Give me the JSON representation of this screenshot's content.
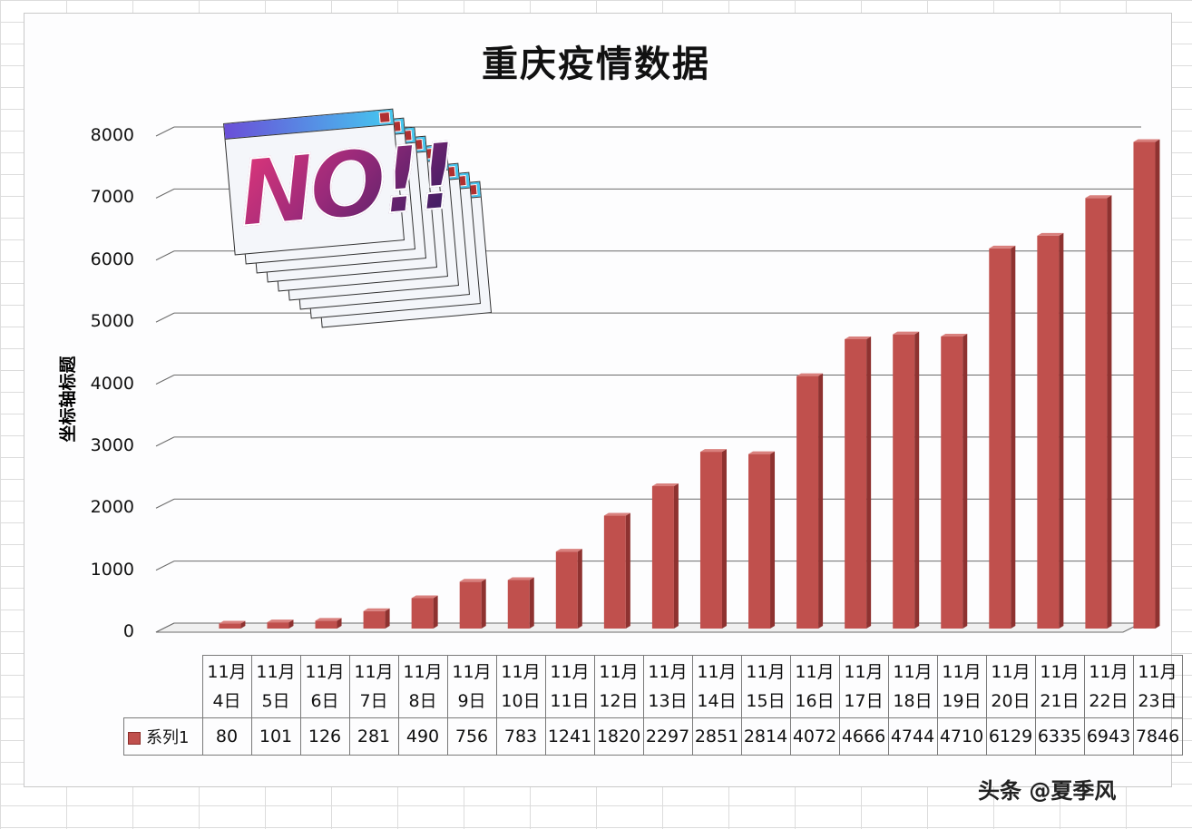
{
  "chart_data": {
    "type": "bar",
    "title": "重庆疫情数据",
    "ylabel": "坐标轴标题",
    "xlabel": "",
    "ylim": [
      0,
      8000
    ],
    "yticks": [
      0,
      1000,
      2000,
      3000,
      4000,
      5000,
      6000,
      7000,
      8000
    ],
    "categories": [
      "11月4日",
      "11月5日",
      "11月6日",
      "11月7日",
      "11月8日",
      "11月9日",
      "11月10日",
      "11月11日",
      "11月12日",
      "11月13日",
      "11月14日",
      "11月15日",
      "11月16日",
      "11月17日",
      "11月18日",
      "11月19日",
      "11月20日",
      "11月21日",
      "11月22日",
      "11月23日"
    ],
    "series": [
      {
        "name": "系列1",
        "values": [
          80,
          101,
          126,
          281,
          490,
          756,
          783,
          1241,
          1820,
          2297,
          2851,
          2814,
          4072,
          4666,
          4744,
          4710,
          6129,
          6335,
          6943,
          7846
        ]
      }
    ],
    "data_table": true,
    "grid": true,
    "bar_color": "#c0504d"
  },
  "overlay": {
    "text": "NO!!"
  },
  "watermark": "头条 @夏季风"
}
